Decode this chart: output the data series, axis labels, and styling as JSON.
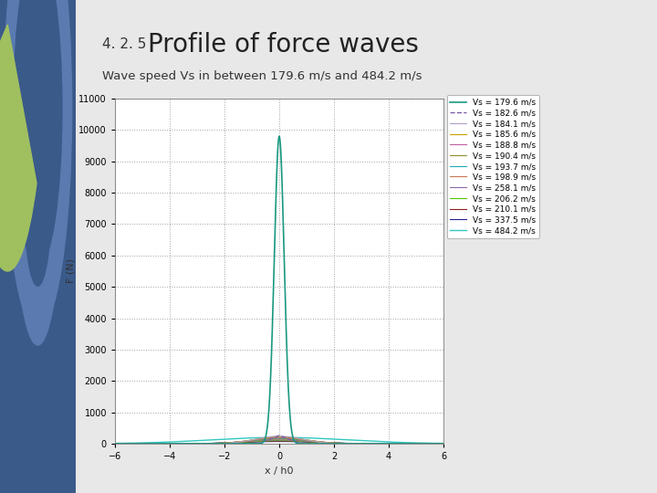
{
  "title": "Profile of force waves",
  "title_prefix": "4. 2. 5",
  "subtitle": "Wave speed Vs in between 179.6 m/s and 484.2 m/s",
  "xlabel": "x / h0",
  "ylabel": "F (N)",
  "xlim": [
    -6,
    6
  ],
  "ylim": [
    0,
    11000
  ],
  "yticks": [
    0,
    1000,
    2000,
    3000,
    4000,
    5000,
    6000,
    7000,
    8000,
    9000,
    10000,
    11000
  ],
  "xticks": [
    -6,
    -4,
    -2,
    0,
    2,
    4,
    6
  ],
  "slide_bg": "#e8e8e8",
  "plot_bg": "#ffffff",
  "left_panel_color": "#4a6fa5",
  "series_info": [
    {
      "label": "Vs = 179.6 m/s",
      "color": "#1a9980",
      "hw": 0.18,
      "peak": 9800,
      "ls": "-",
      "lw": 1.2
    },
    {
      "label": "Vs = 182.6 m/s",
      "color": "#7b5ea7",
      "hw": 0.8,
      "peak": 260,
      "ls": "--",
      "lw": 1.0
    },
    {
      "label": "Vs = 184.1 m/s",
      "color": "#b0a0c8",
      "hw": 0.85,
      "peak": 240,
      "ls": "-",
      "lw": 0.8
    },
    {
      "label": "Vs = 185.6 m/s",
      "color": "#c8a000",
      "hw": 0.9,
      "peak": 220,
      "ls": "-",
      "lw": 0.8
    },
    {
      "label": "Vs = 188.8 m/s",
      "color": "#c060a0",
      "hw": 0.95,
      "peak": 200,
      "ls": "-",
      "lw": 0.8
    },
    {
      "label": "Vs = 190.4 m/s",
      "color": "#909030",
      "hw": 1.0,
      "peak": 180,
      "ls": "-",
      "lw": 0.8
    },
    {
      "label": "Vs = 193.7 m/s",
      "color": "#20a8b8",
      "hw": 1.05,
      "peak": 160,
      "ls": "-",
      "lw": 0.8
    },
    {
      "label": "Vs = 198.9 m/s",
      "color": "#c87850",
      "hw": 1.1,
      "peak": 140,
      "ls": "-",
      "lw": 0.8
    },
    {
      "label": "Vs = 258.1 m/s",
      "color": "#8868a8",
      "hw": 1.15,
      "peak": 120,
      "ls": "-",
      "lw": 0.8
    },
    {
      "label": "Vs = 206.2 m/s",
      "color": "#50c800",
      "hw": 1.2,
      "peak": 100,
      "ls": "-",
      "lw": 0.8
    },
    {
      "label": "Vs = 210.1 m/s",
      "color": "#902020",
      "hw": 1.25,
      "peak": 85,
      "ls": "-",
      "lw": 0.8
    },
    {
      "label": "Vs = 337.5 m/s",
      "color": "#202090",
      "hw": 1.4,
      "peak": 70,
      "ls": "-",
      "lw": 0.8
    },
    {
      "label": "Vs = 484.2 m/s",
      "color": "#30c8c0",
      "hw": 2.5,
      "peak": 200,
      "ls": "-",
      "lw": 1.0
    }
  ]
}
